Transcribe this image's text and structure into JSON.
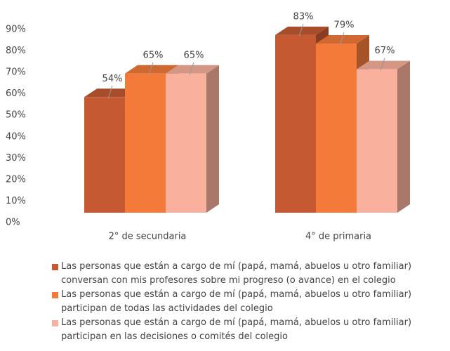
{
  "chart_data": {
    "type": "bar3d",
    "categories": [
      "2° de secundaria",
      "4° de primaria"
    ],
    "series": [
      {
        "name": "Las personas que están a cargo de mí (papá, mamá, abuelos u otro familiar) conversan con mis profesores sobre mi progreso (o avance) en el colegio",
        "color": "#c55a32",
        "values": [
          54,
          83
        ],
        "value_labels": [
          "54%",
          "83%"
        ]
      },
      {
        "name": "Las personas que están a cargo de mí (papá, mamá, abuelos u otro familiar) participan de todas las actividades del colegio",
        "color": "#f47a3a",
        "values": [
          65,
          79
        ],
        "value_labels": [
          "65%",
          "79%"
        ]
      },
      {
        "name": "Las personas que están a cargo de mí (papá, mamá, abuelos u otro familiar) participan en las decisiones o comités del colegio",
        "color": "#f9b09c",
        "values": [
          65,
          67
        ],
        "value_labels": [
          "65%",
          "67%"
        ]
      }
    ],
    "ylim": [
      0,
      90
    ],
    "yticks": [
      {
        "value": 0,
        "label": "0%"
      },
      {
        "value": 10,
        "label": "10%"
      },
      {
        "value": 20,
        "label": "20%"
      },
      {
        "value": 30,
        "label": "30%"
      },
      {
        "value": 40,
        "label": "40%"
      },
      {
        "value": 50,
        "label": "50%"
      },
      {
        "value": 60,
        "label": "60%"
      },
      {
        "value": 70,
        "label": "70%"
      },
      {
        "value": 80,
        "label": "80%"
      },
      {
        "value": 90,
        "label": "90%"
      }
    ],
    "legend": "bottom"
  }
}
